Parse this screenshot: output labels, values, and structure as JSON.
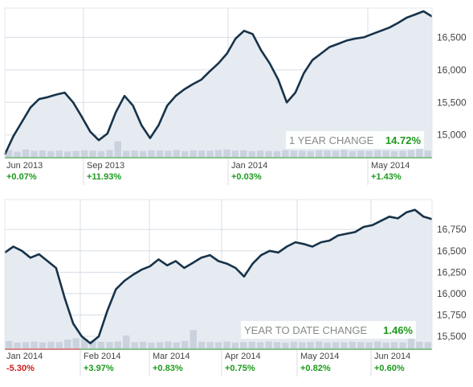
{
  "colors": {
    "line": "#17334a",
    "area": "#e6ebf1",
    "volume": "#cad2de",
    "axis_positive": "#2c9a2c",
    "axis_negative": "#c32424",
    "gain": "#1d9a1d",
    "loss": "#cc1f1f",
    "grid": "#d7dde6"
  },
  "chart_data": [
    {
      "type": "area",
      "badge": {
        "label": "1 YEAR CHANGE",
        "value": "14.72%"
      },
      "y_ticks": [
        "15,000",
        "15,500",
        "16,000",
        "16,500"
      ],
      "ylim": [
        14650,
        16950
      ],
      "x_labels": [
        {
          "label": "Jun 2013",
          "change": "+0.07%"
        },
        {
          "label": "Sep 2013",
          "change": "+11.93%"
        },
        {
          "label": "Jan 2014",
          "change": "+0.03%"
        },
        {
          "label": "May 2014",
          "change": "+1.43%"
        }
      ],
      "x": [
        0,
        2,
        4,
        6,
        8,
        10,
        12,
        14,
        16,
        18,
        20,
        22,
        24,
        26,
        28,
        30,
        32,
        34,
        36,
        38,
        40,
        42,
        44,
        46,
        48,
        50,
        52,
        54,
        56,
        58,
        60,
        62,
        64,
        66,
        68,
        70,
        72,
        74,
        76,
        78,
        80,
        82,
        84,
        86,
        88,
        90,
        92,
        94,
        96,
        98,
        100
      ],
      "values": [
        14700,
        14980,
        15200,
        15420,
        15550,
        15580,
        15620,
        15650,
        15500,
        15280,
        15050,
        14920,
        15020,
        15350,
        15600,
        15450,
        15150,
        14950,
        15150,
        15450,
        15600,
        15700,
        15780,
        15850,
        15980,
        16100,
        16250,
        16480,
        16600,
        16550,
        16300,
        16100,
        15850,
        15500,
        15650,
        15950,
        16150,
        16250,
        16350,
        16400,
        16450,
        16480,
        16500,
        16550,
        16600,
        16650,
        16720,
        16800,
        16850,
        16900,
        16820
      ],
      "volume": [
        0.28,
        0.22,
        0.3,
        0.25,
        0.27,
        0.24,
        0.26,
        0.23,
        0.25,
        0.27,
        0.26,
        0.24,
        0.28,
        0.6,
        0.25,
        0.26,
        0.24,
        0.27,
        0.26,
        0.25,
        0.28,
        0.24,
        0.27,
        0.26,
        0.25,
        0.28,
        0.3,
        0.26,
        0.27,
        0.24,
        0.26,
        0.25,
        0.24,
        0.28,
        0.26,
        0.25,
        0.24,
        0.27,
        0.26,
        0.25,
        0.28,
        0.24,
        0.26,
        0.25,
        0.27,
        0.26,
        0.24,
        0.25,
        0.27,
        0.8,
        0.26
      ]
    },
    {
      "type": "area",
      "badge": {
        "label": "YEAR TO DATE CHANGE",
        "value": "1.46%"
      },
      "y_ticks": [
        "15,500",
        "15,750",
        "16,000",
        "16,250",
        "16,500",
        "16,750"
      ],
      "ylim": [
        15350,
        17100
      ],
      "x_labels": [
        {
          "label": "Jan 2014",
          "change": "-5.30%"
        },
        {
          "label": "Feb 2014",
          "change": "+3.97%"
        },
        {
          "label": "Mar 2014",
          "change": "+0.83%"
        },
        {
          "label": "Apr 2014",
          "change": "+0.75%"
        },
        {
          "label": "May 2014",
          "change": "+0.82%"
        },
        {
          "label": "Jun 2014",
          "change": "+0.60%"
        }
      ],
      "x": [
        0,
        2,
        4,
        6,
        8,
        10,
        12,
        14,
        16,
        18,
        20,
        22,
        24,
        26,
        28,
        30,
        32,
        34,
        36,
        38,
        40,
        42,
        44,
        46,
        48,
        50,
        52,
        54,
        56,
        58,
        60,
        62,
        64,
        66,
        68,
        70,
        72,
        74,
        76,
        78,
        80,
        82,
        84,
        86,
        88,
        90,
        92,
        94,
        96,
        98,
        100
      ],
      "values": [
        16480,
        16550,
        16500,
        16420,
        16460,
        16380,
        16300,
        15950,
        15650,
        15500,
        15420,
        15500,
        15800,
        16050,
        16150,
        16220,
        16280,
        16320,
        16400,
        16330,
        16380,
        16300,
        16360,
        16420,
        16450,
        16380,
        16350,
        16300,
        16200,
        16350,
        16450,
        16500,
        16480,
        16550,
        16600,
        16580,
        16550,
        16600,
        16620,
        16680,
        16700,
        16720,
        16780,
        16800,
        16850,
        16900,
        16880,
        16950,
        16980,
        16900,
        16870
      ],
      "volume": [
        0.3,
        0.24,
        0.26,
        0.28,
        0.25,
        0.27,
        0.26,
        0.35,
        0.4,
        0.38,
        0.3,
        0.27,
        0.26,
        0.28,
        0.5,
        0.26,
        0.27,
        0.24,
        0.26,
        0.28,
        0.25,
        0.3,
        0.7,
        0.27,
        0.26,
        0.25,
        0.28,
        0.24,
        0.26,
        0.27,
        0.25,
        0.28,
        0.26,
        0.24,
        0.27,
        0.25,
        0.26,
        0.28,
        0.24,
        0.26,
        0.25,
        0.27,
        0.26,
        0.25,
        0.28,
        0.24,
        0.26,
        0.25,
        0.6,
        0.27,
        0.26
      ]
    }
  ]
}
